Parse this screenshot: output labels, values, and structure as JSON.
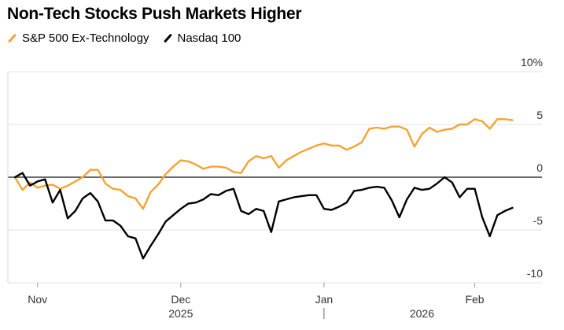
{
  "chart_data": {
    "type": "line",
    "title": "Non-Tech Stocks Push Markets Higher",
    "xlabel": "",
    "ylabel": "",
    "ylim": [
      -10,
      10
    ],
    "y_ticks": [
      10,
      5,
      0,
      -5,
      -10
    ],
    "y_tick_labels": [
      "10%",
      "5",
      "0",
      "-5",
      "-10"
    ],
    "x_domain": [
      0,
      67
    ],
    "x_ticks": [
      {
        "label": "Nov",
        "x": 3
      },
      {
        "label": "Dec",
        "x": 22
      },
      {
        "label": "Jan",
        "x": 41
      },
      {
        "label": "Feb",
        "x": 61
      }
    ],
    "years": [
      {
        "label": "2025",
        "x": 22
      },
      {
        "label": "2026",
        "x": 54
      }
    ],
    "year_divider_x": 41,
    "grid": true,
    "legend_position": "top-left",
    "series": [
      {
        "name": "S&P 500 Ex-Technology",
        "color": "#f5a332",
        "values": [
          [
            0,
            0
          ],
          [
            1,
            -1.2
          ],
          [
            2,
            -0.5
          ],
          [
            3,
            -1.0
          ],
          [
            4,
            -0.8
          ],
          [
            5,
            -0.7
          ],
          [
            6,
            -1.1
          ],
          [
            7,
            -0.8
          ],
          [
            8,
            -0.4
          ],
          [
            9,
            0.0
          ],
          [
            10,
            0.7
          ],
          [
            11,
            0.7
          ],
          [
            12,
            -0.6
          ],
          [
            13,
            -1.1
          ],
          [
            14,
            -1.2
          ],
          [
            15,
            -1.8
          ],
          [
            16,
            -2.0
          ],
          [
            17,
            -3.0
          ],
          [
            18,
            -1.4
          ],
          [
            19,
            -0.7
          ],
          [
            20,
            0.3
          ],
          [
            21,
            1.0
          ],
          [
            22,
            1.6
          ],
          [
            23,
            1.5
          ],
          [
            24,
            1.2
          ],
          [
            25,
            0.8
          ],
          [
            26,
            1.0
          ],
          [
            27,
            1.0
          ],
          [
            28,
            0.9
          ],
          [
            29,
            0.5
          ],
          [
            30,
            0.4
          ],
          [
            31,
            1.5
          ],
          [
            32,
            2.0
          ],
          [
            33,
            1.8
          ],
          [
            34,
            2.0
          ],
          [
            35,
            0.9
          ],
          [
            36,
            1.6
          ],
          [
            37,
            2.0
          ],
          [
            38,
            2.4
          ],
          [
            39,
            2.7
          ],
          [
            40,
            3.0
          ],
          [
            41,
            3.2
          ],
          [
            42,
            3.0
          ],
          [
            43,
            3.0
          ],
          [
            44,
            2.6
          ],
          [
            45,
            2.9
          ],
          [
            46,
            3.3
          ],
          [
            47,
            4.6
          ],
          [
            48,
            4.7
          ],
          [
            49,
            4.6
          ],
          [
            50,
            4.8
          ],
          [
            51,
            4.8
          ],
          [
            52,
            4.5
          ],
          [
            53,
            2.9
          ],
          [
            54,
            4.1
          ],
          [
            55,
            4.7
          ],
          [
            56,
            4.3
          ],
          [
            57,
            4.5
          ],
          [
            58,
            4.6
          ],
          [
            59,
            5.0
          ],
          [
            60,
            5.0
          ],
          [
            61,
            5.5
          ],
          [
            62,
            5.3
          ],
          [
            63,
            4.6
          ],
          [
            64,
            5.5
          ],
          [
            65,
            5.5
          ],
          [
            66,
            5.4
          ]
        ]
      },
      {
        "name": "Nasdaq 100",
        "color": "#000000",
        "values": [
          [
            0,
            0
          ],
          [
            1,
            0.4
          ],
          [
            2,
            -0.8
          ],
          [
            3,
            -0.4
          ],
          [
            4,
            -0.2
          ],
          [
            5,
            -2.4
          ],
          [
            6,
            -1.2
          ],
          [
            7,
            -3.9
          ],
          [
            8,
            -3.2
          ],
          [
            9,
            -2.0
          ],
          [
            10,
            -1.5
          ],
          [
            11,
            -2.3
          ],
          [
            12,
            -4.1
          ],
          [
            13,
            -4.1
          ],
          [
            14,
            -4.6
          ],
          [
            15,
            -5.6
          ],
          [
            16,
            -5.8
          ],
          [
            17,
            -7.7
          ],
          [
            18,
            -6.5
          ],
          [
            19,
            -5.4
          ],
          [
            20,
            -4.2
          ],
          [
            21,
            -3.6
          ],
          [
            22,
            -3.0
          ],
          [
            23,
            -2.5
          ],
          [
            24,
            -2.4
          ],
          [
            25,
            -2.1
          ],
          [
            26,
            -1.6
          ],
          [
            27,
            -1.7
          ],
          [
            28,
            -1.3
          ],
          [
            29,
            -1.1
          ],
          [
            30,
            -3.2
          ],
          [
            31,
            -3.5
          ],
          [
            32,
            -3.0
          ],
          [
            33,
            -3.2
          ],
          [
            34,
            -5.2
          ],
          [
            35,
            -2.3
          ],
          [
            36,
            -2.1
          ],
          [
            37,
            -1.9
          ],
          [
            38,
            -1.8
          ],
          [
            39,
            -1.7
          ],
          [
            40,
            -1.7
          ],
          [
            41,
            -3.0
          ],
          [
            42,
            -3.1
          ],
          [
            43,
            -2.8
          ],
          [
            44,
            -2.4
          ],
          [
            45,
            -1.3
          ],
          [
            46,
            -1.2
          ],
          [
            47,
            -1.0
          ],
          [
            48,
            -0.9
          ],
          [
            49,
            -1.0
          ],
          [
            50,
            -2.2
          ],
          [
            51,
            -3.8
          ],
          [
            52,
            -2.1
          ],
          [
            53,
            -1.0
          ],
          [
            54,
            -1.2
          ],
          [
            55,
            -1.1
          ],
          [
            56,
            -0.6
          ],
          [
            57,
            0.0
          ],
          [
            58,
            -0.5
          ],
          [
            59,
            -1.9
          ],
          [
            60,
            -1.1
          ],
          [
            61,
            -1.1
          ],
          [
            62,
            -3.8
          ],
          [
            63,
            -5.6
          ],
          [
            64,
            -3.6
          ],
          [
            65,
            -3.2
          ],
          [
            66,
            -2.9
          ]
        ]
      }
    ]
  }
}
